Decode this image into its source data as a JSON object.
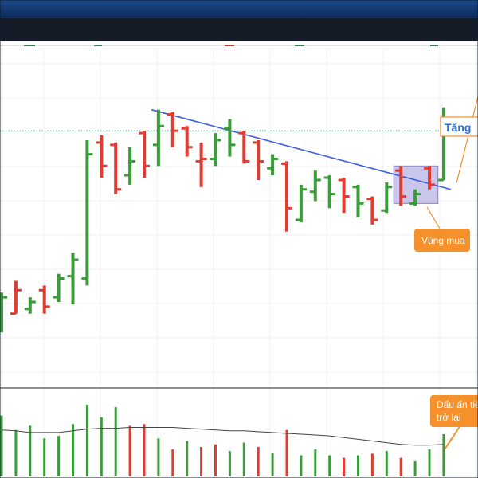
{
  "app": {
    "header_color": "#1a4a8a",
    "toolbar_color": "#151c28"
  },
  "chart_data": {
    "type": "ohlc",
    "colors": {
      "up": "#3a9d3a",
      "down": "#e03c31",
      "trendline": "#3b5fe0",
      "annotation": "#f5902b",
      "zone_fill": "#b9b4e6",
      "volume_ma": "#444444",
      "last_price_line": "#3aa38b"
    },
    "price_chart": {
      "bars": [
        {
          "o": 35,
          "h": 39,
          "l": 22,
          "c": 37,
          "dir": "up"
        },
        {
          "o": 30,
          "h": 44,
          "l": 30,
          "c": 40,
          "dir": "down"
        },
        {
          "o": 32,
          "h": 37,
          "l": 30,
          "c": 35,
          "dir": "up"
        },
        {
          "o": 40,
          "h": 42,
          "l": 30,
          "c": 33,
          "dir": "down"
        },
        {
          "o": 37,
          "h": 47,
          "l": 35,
          "c": 45,
          "dir": "up"
        },
        {
          "o": 46,
          "h": 56,
          "l": 34,
          "c": 53,
          "dir": "up"
        },
        {
          "o": 45,
          "h": 104,
          "l": 42,
          "c": 98,
          "dir": "up"
        },
        {
          "o": 103,
          "h": 106,
          "l": 88,
          "c": 93,
          "dir": "down"
        },
        {
          "o": 102,
          "h": 103,
          "l": 81,
          "c": 83,
          "dir": "down"
        },
        {
          "o": 89,
          "h": 101,
          "l": 85,
          "c": 95,
          "dir": "up"
        },
        {
          "o": 107,
          "h": 108,
          "l": 88,
          "c": 93,
          "dir": "down"
        },
        {
          "o": 102,
          "h": 117,
          "l": 93,
          "c": 110,
          "dir": "up"
        },
        {
          "o": 115,
          "h": 116,
          "l": 101,
          "c": 108,
          "dir": "down"
        },
        {
          "o": 109,
          "h": 110,
          "l": 97,
          "c": 101,
          "dir": "down"
        },
        {
          "o": 95,
          "h": 103,
          "l": 84,
          "c": 96,
          "dir": "down"
        },
        {
          "o": 96,
          "h": 107,
          "l": 93,
          "c": 104,
          "dir": "up"
        },
        {
          "o": 109,
          "h": 113,
          "l": 97,
          "c": 102,
          "dir": "up"
        },
        {
          "o": 107,
          "h": 108,
          "l": 94,
          "c": 95,
          "dir": "down"
        },
        {
          "o": 103,
          "h": 104,
          "l": 87,
          "c": 95,
          "dir": "down"
        },
        {
          "o": 92,
          "h": 98,
          "l": 89,
          "c": 96,
          "dir": "up"
        },
        {
          "o": 94,
          "h": 95,
          "l": 65,
          "c": 75,
          "dir": "down"
        },
        {
          "o": 70,
          "h": 85,
          "l": 69,
          "c": 83,
          "dir": "up"
        },
        {
          "o": 82,
          "h": 91,
          "l": 78,
          "c": 87,
          "dir": "up"
        },
        {
          "o": 88,
          "h": 89,
          "l": 75,
          "c": 81,
          "dir": "up"
        },
        {
          "o": 87,
          "h": 88,
          "l": 73,
          "c": 80,
          "dir": "down"
        },
        {
          "o": 84,
          "h": 85,
          "l": 71,
          "c": 77,
          "dir": "up"
        },
        {
          "o": 79,
          "h": 80,
          "l": 68,
          "c": 70,
          "dir": "down"
        },
        {
          "o": 74,
          "h": 86,
          "l": 73,
          "c": 84,
          "dir": "up"
        },
        {
          "o": 91,
          "h": 93,
          "l": 76,
          "c": 80,
          "dir": "down"
        },
        {
          "o": 77,
          "h": 83,
          "l": 76,
          "c": 81,
          "dir": "up"
        },
        {
          "o": 92,
          "h": 93,
          "l": 83,
          "c": 85,
          "dir": "down"
        },
        {
          "o": 87,
          "h": 118,
          "l": 87,
          "c": 108,
          "dir": "up"
        }
      ],
      "last_price": 108,
      "trendline": [
        {
          "bar": 10.5,
          "price": 117
        },
        {
          "bar": 31.5,
          "price": 83
        }
      ],
      "buy_zone": {
        "from_bar": 27.5,
        "to_bar": 30.6,
        "low": 77,
        "high": 93
      },
      "annotations": [
        {
          "id": "rise",
          "text": "Tăng"
        },
        {
          "id": "buy-zone",
          "text": "Vùng mua"
        },
        {
          "id": "volume-signal",
          "lines": [
            "Dấu ấn tiền",
            "trở lại"
          ]
        }
      ]
    },
    "volume_chart": {
      "bars": [
        {
          "v": 72,
          "dir": "up"
        },
        {
          "v": 55,
          "dir": "up"
        },
        {
          "v": 60,
          "dir": "up"
        },
        {
          "v": 45,
          "dir": "up"
        },
        {
          "v": 48,
          "dir": "up"
        },
        {
          "v": 62,
          "dir": "up"
        },
        {
          "v": 85,
          "dir": "up"
        },
        {
          "v": 70,
          "dir": "up"
        },
        {
          "v": 82,
          "dir": "up"
        },
        {
          "v": 60,
          "dir": "down"
        },
        {
          "v": 62,
          "dir": "down"
        },
        {
          "v": 45,
          "dir": "up"
        },
        {
          "v": 32,
          "dir": "down"
        },
        {
          "v": 42,
          "dir": "up"
        },
        {
          "v": 35,
          "dir": "down"
        },
        {
          "v": 38,
          "dir": "down"
        },
        {
          "v": 30,
          "dir": "up"
        },
        {
          "v": 40,
          "dir": "up"
        },
        {
          "v": 35,
          "dir": "down"
        },
        {
          "v": 28,
          "dir": "up"
        },
        {
          "v": 55,
          "dir": "down"
        },
        {
          "v": 25,
          "dir": "up"
        },
        {
          "v": 32,
          "dir": "up"
        },
        {
          "v": 25,
          "dir": "up"
        },
        {
          "v": 22,
          "dir": "down"
        },
        {
          "v": 25,
          "dir": "up"
        },
        {
          "v": 27,
          "dir": "down"
        },
        {
          "v": 30,
          "dir": "up"
        },
        {
          "v": 22,
          "dir": "down"
        },
        {
          "v": 18,
          "dir": "up"
        },
        {
          "v": 32,
          "dir": "up"
        },
        {
          "v": 50,
          "dir": "up"
        }
      ],
      "ma": [
        55,
        54,
        52,
        52,
        52,
        54,
        56,
        57,
        57,
        58,
        58,
        58,
        58,
        57,
        56,
        55,
        54,
        54,
        53,
        52,
        51,
        50,
        49,
        48,
        46,
        44,
        42,
        40,
        38,
        37,
        37,
        38
      ]
    }
  }
}
